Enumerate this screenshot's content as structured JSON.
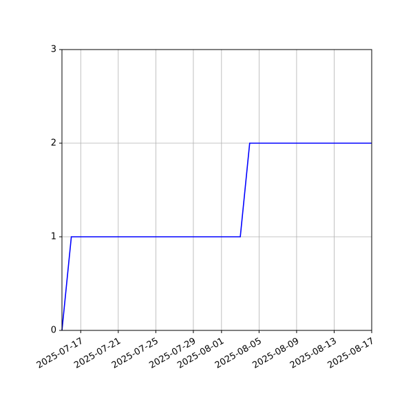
{
  "chart_data": {
    "type": "line",
    "title": "",
    "xlabel": "",
    "ylabel": "",
    "x_type": "date",
    "xlim": [
      "2025-07-15",
      "2025-08-17"
    ],
    "ylim": [
      0,
      3
    ],
    "grid": true,
    "x_ticks": [
      "2025-07-17",
      "2025-07-21",
      "2025-07-25",
      "2025-07-29",
      "2025-08-01",
      "2025-08-05",
      "2025-08-09",
      "2025-08-13",
      "2025-08-17"
    ],
    "y_ticks": [
      "0",
      "1",
      "2",
      "3"
    ],
    "series": [
      {
        "color": "#0000ff",
        "x": [
          "2025-07-15",
          "2025-07-16",
          "2025-08-03",
          "2025-08-04",
          "2025-08-17"
        ],
        "y": [
          0,
          1,
          1,
          2,
          2
        ]
      }
    ]
  }
}
